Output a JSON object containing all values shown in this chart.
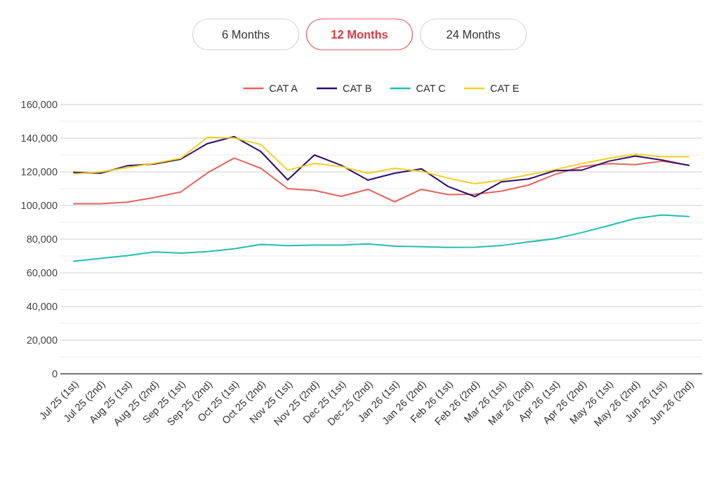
{
  "chart_data": {
    "type": "line",
    "annotations": [
      "6 Months",
      "12 Months",
      "24 Months"
    ],
    "categories": [
      "Jul 25 (1st)",
      "Jul 25 (2nd)",
      "Aug 25 (1st)",
      "Aug 25 (2nd)",
      "Sep 25 (1st)",
      "Sep 25 (2nd)",
      "Oct 25 (1st)",
      "Oct 25 (2nd)",
      "Nov 25 (1st)",
      "Nov 25 (2nd)",
      "Dec 25 (1st)",
      "Dec 25 (2nd)",
      "Jan 26 (1st)",
      "Jan 26 (2nd)",
      "Feb 26 (1st)",
      "Feb 26 (2nd)",
      "Mar 26 (1st)",
      "Mar 26 (2nd)",
      "Apr 26 (1st)",
      "Apr 26 (2nd)",
      "May 26 (1st)",
      "May 26 (2nd)",
      "Jun 26 (1st)",
      "Jun 26 (2nd)"
    ],
    "series": [
      {
        "name": "CAT A",
        "color": "#e8615a",
        "values": [
          101000,
          101000,
          102000,
          104700,
          108000,
          119400,
          128200,
          122100,
          110000,
          109000,
          105400,
          109600,
          102200,
          109600,
          106500,
          106700,
          108500,
          112100,
          118500,
          123100,
          124900,
          124300,
          126300,
          124000
        ]
      },
      {
        "name": "CAT B",
        "color": "#2b0a6e",
        "values": [
          119700,
          119200,
          123600,
          124600,
          127500,
          136800,
          140900,
          132000,
          115200,
          130000,
          123900,
          115100,
          119200,
          121800,
          111300,
          105300,
          114100,
          115700,
          120700,
          121000,
          126300,
          129400,
          127000,
          123800
        ]
      },
      {
        "name": "CAT C",
        "color": "#1fbfad",
        "values": [
          66900,
          68500,
          70200,
          72400,
          71700,
          72600,
          74300,
          76900,
          76100,
          76500,
          76500,
          77200,
          75800,
          75500,
          75100,
          75200,
          76200,
          78300,
          80300,
          83900,
          88000,
          92300,
          94400,
          93400
        ]
      },
      {
        "name": "CAT E",
        "color": "#f0d020",
        "values": [
          118700,
          119900,
          122500,
          125000,
          128000,
          140500,
          140100,
          136200,
          121000,
          125000,
          123100,
          119200,
          122100,
          120300,
          116300,
          112900,
          115100,
          118200,
          121400,
          124900,
          128000,
          130400,
          129000,
          129000
        ]
      }
    ],
    "ylim": [
      0,
      160000
    ],
    "yticks": [
      0,
      {
        "value": 10000,
        "label": null
      },
      {
        "value": 20000,
        "label": "20,000"
      },
      {
        "value": 30000,
        "label": null
      },
      {
        "value": 40000,
        "label": "40,000"
      },
      {
        "value": 50000,
        "label": null
      },
      {
        "value": 60000,
        "label": "60,000"
      },
      {
        "value": 70000,
        "label": null
      },
      {
        "value": 80000,
        "label": "80,000"
      },
      {
        "value": 90000,
        "label": null
      },
      {
        "value": 100000,
        "label": "100,000"
      },
      {
        "value": 110000,
        "label": null
      },
      {
        "value": 120000,
        "label": "120,000"
      },
      {
        "value": 130000,
        "label": null
      },
      {
        "value": 140000,
        "label": "140,000"
      },
      {
        "value": 150000,
        "label": null
      },
      {
        "value": 160000,
        "label": "160,000"
      }
    ],
    "grid": "y",
    "legend": "top"
  }
}
